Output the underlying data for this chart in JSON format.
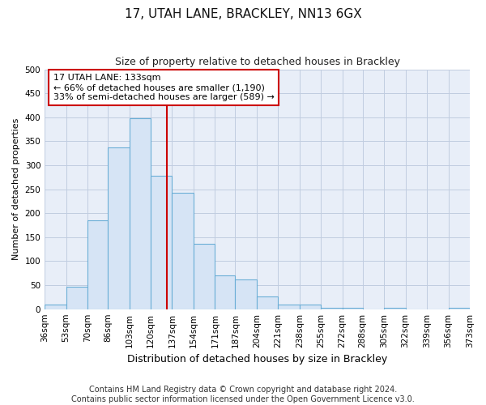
{
  "title": "17, UTAH LANE, BRACKLEY, NN13 6GX",
  "subtitle": "Size of property relative to detached houses in Brackley",
  "xlabel": "Distribution of detached houses by size in Brackley",
  "ylabel": "Number of detached properties",
  "bin_edges": [
    36,
    53,
    70,
    86,
    103,
    120,
    137,
    154,
    171,
    187,
    204,
    221,
    238,
    255,
    272,
    288,
    305,
    322,
    339,
    356,
    373
  ],
  "bin_labels": [
    "36sqm",
    "53sqm",
    "70sqm",
    "86sqm",
    "103sqm",
    "120sqm",
    "137sqm",
    "154sqm",
    "171sqm",
    "187sqm",
    "204sqm",
    "221sqm",
    "238sqm",
    "255sqm",
    "272sqm",
    "288sqm",
    "305sqm",
    "322sqm",
    "339sqm",
    "356sqm",
    "373sqm"
  ],
  "counts": [
    10,
    46,
    185,
    338,
    398,
    278,
    242,
    136,
    70,
    62,
    26,
    10,
    10,
    2,
    2,
    0,
    2,
    0,
    0,
    2
  ],
  "bar_color": "#d6e4f5",
  "bar_edge_color": "#6baed6",
  "vline_x": 133,
  "vline_color": "#cc0000",
  "annotation_line1": "17 UTAH LANE: 133sqm",
  "annotation_line2": "← 66% of detached houses are smaller (1,190)",
  "annotation_line3": "33% of semi-detached houses are larger (589) →",
  "annotation_box_color": "white",
  "annotation_box_edge_color": "#cc0000",
  "ylim": [
    0,
    500
  ],
  "yticks": [
    0,
    50,
    100,
    150,
    200,
    250,
    300,
    350,
    400,
    450,
    500
  ],
  "footer_line1": "Contains HM Land Registry data © Crown copyright and database right 2024.",
  "footer_line2": "Contains public sector information licensed under the Open Government Licence v3.0.",
  "fig_bg_color": "#ffffff",
  "plot_bg_color": "#e8eef8",
  "grid_color": "#c0cce0",
  "title_fontsize": 11,
  "subtitle_fontsize": 9,
  "ylabel_fontsize": 8,
  "xlabel_fontsize": 9,
  "tick_fontsize": 7.5,
  "footer_fontsize": 7
}
